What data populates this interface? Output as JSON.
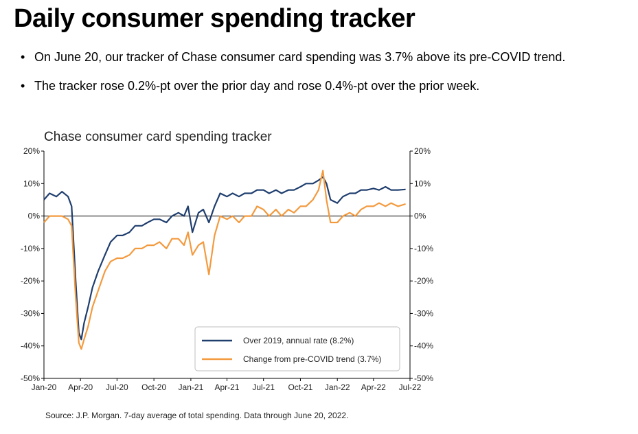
{
  "header": {
    "title": "Daily consumer spending tracker",
    "bullets": [
      "On June 20, our tracker of Chase consumer card spending was 3.7% above its pre-COVID trend.",
      "The tracker rose 0.2%-pt over the prior day and rose 0.4%-pt over the prior week."
    ]
  },
  "footer": {
    "source": "Source: J.P. Morgan. 7-day average of total spending. Data through June 20, 2022."
  },
  "chart_data": {
    "type": "line",
    "title": "Chase consumer card spending tracker",
    "xlabel": "",
    "ylabel": "",
    "x_unit": "date",
    "x_range": [
      "2020-01-01",
      "2022-07-01"
    ],
    "ylim": [
      -50,
      20
    ],
    "y_ticks": [
      20,
      10,
      0,
      -10,
      -20,
      -30,
      -40,
      -50
    ],
    "y_tick_labels": [
      "20%",
      "10%",
      "0%",
      "-10%",
      "-20%",
      "-30%",
      "-40%",
      "-50%"
    ],
    "x_ticks": [
      "2020-01-01",
      "2020-04-01",
      "2020-07-01",
      "2020-10-01",
      "2021-01-01",
      "2021-04-01",
      "2021-07-01",
      "2021-10-01",
      "2022-01-01",
      "2022-04-01",
      "2022-07-01"
    ],
    "x_tick_labels": [
      "Jan-20",
      "Apr-20",
      "Jul-20",
      "Oct-20",
      "Jan-21",
      "Apr-21",
      "Jul-21",
      "Oct-21",
      "Jan-22",
      "Apr-22",
      "Jul-22"
    ],
    "legend_position": "bottom-right",
    "zero_line": true,
    "grid": false,
    "series": [
      {
        "name": "Over 2019, annual rate (8.2%)",
        "color": "#1f3e6e",
        "points": [
          [
            "2020-01-01",
            5
          ],
          [
            "2020-01-15",
            7
          ],
          [
            "2020-02-01",
            6
          ],
          [
            "2020-02-15",
            7.5
          ],
          [
            "2020-03-01",
            6
          ],
          [
            "2020-03-10",
            3
          ],
          [
            "2020-03-20",
            -20
          ],
          [
            "2020-03-28",
            -36
          ],
          [
            "2020-04-03",
            -38
          ],
          [
            "2020-04-10",
            -33
          ],
          [
            "2020-04-20",
            -28
          ],
          [
            "2020-05-01",
            -22
          ],
          [
            "2020-05-15",
            -17
          ],
          [
            "2020-06-01",
            -12
          ],
          [
            "2020-06-15",
            -8
          ],
          [
            "2020-07-01",
            -6
          ],
          [
            "2020-07-15",
            -6
          ],
          [
            "2020-08-01",
            -5
          ],
          [
            "2020-08-15",
            -3
          ],
          [
            "2020-09-01",
            -3
          ],
          [
            "2020-09-15",
            -2
          ],
          [
            "2020-10-01",
            -1
          ],
          [
            "2020-10-15",
            -1
          ],
          [
            "2020-11-01",
            -2
          ],
          [
            "2020-11-15",
            0
          ],
          [
            "2020-12-01",
            1
          ],
          [
            "2020-12-15",
            0
          ],
          [
            "2020-12-25",
            3
          ],
          [
            "2021-01-05",
            -5
          ],
          [
            "2021-01-20",
            1
          ],
          [
            "2021-02-01",
            2
          ],
          [
            "2021-02-15",
            -2
          ],
          [
            "2021-03-01",
            3
          ],
          [
            "2021-03-15",
            7
          ],
          [
            "2021-04-01",
            6
          ],
          [
            "2021-04-15",
            7
          ],
          [
            "2021-05-01",
            6
          ],
          [
            "2021-05-15",
            7
          ],
          [
            "2021-06-01",
            7
          ],
          [
            "2021-06-15",
            8
          ],
          [
            "2021-07-01",
            8
          ],
          [
            "2021-07-15",
            7
          ],
          [
            "2021-08-01",
            8
          ],
          [
            "2021-08-15",
            7
          ],
          [
            "2021-09-01",
            8
          ],
          [
            "2021-09-15",
            8
          ],
          [
            "2021-10-01",
            9
          ],
          [
            "2021-10-15",
            10
          ],
          [
            "2021-11-01",
            10
          ],
          [
            "2021-11-15",
            11
          ],
          [
            "2021-11-26",
            12
          ],
          [
            "2021-12-05",
            10
          ],
          [
            "2021-12-15",
            5
          ],
          [
            "2022-01-01",
            4
          ],
          [
            "2022-01-15",
            6
          ],
          [
            "2022-02-01",
            7
          ],
          [
            "2022-02-15",
            7
          ],
          [
            "2022-03-01",
            8
          ],
          [
            "2022-03-15",
            8
          ],
          [
            "2022-04-01",
            8.5
          ],
          [
            "2022-04-15",
            8
          ],
          [
            "2022-05-01",
            9
          ],
          [
            "2022-05-15",
            8
          ],
          [
            "2022-06-01",
            8
          ],
          [
            "2022-06-20",
            8.2
          ]
        ]
      },
      {
        "name": "Change from pre-COVID trend (3.7%)",
        "color": "#f39a3e",
        "points": [
          [
            "2020-01-01",
            -2
          ],
          [
            "2020-01-15",
            0
          ],
          [
            "2020-02-01",
            0
          ],
          [
            "2020-02-15",
            0
          ],
          [
            "2020-03-01",
            -1
          ],
          [
            "2020-03-10",
            -3
          ],
          [
            "2020-03-20",
            -25
          ],
          [
            "2020-03-28",
            -39
          ],
          [
            "2020-04-03",
            -41
          ],
          [
            "2020-04-10",
            -38
          ],
          [
            "2020-04-20",
            -34
          ],
          [
            "2020-05-01",
            -28
          ],
          [
            "2020-05-15",
            -23
          ],
          [
            "2020-06-01",
            -17
          ],
          [
            "2020-06-15",
            -14
          ],
          [
            "2020-07-01",
            -13
          ],
          [
            "2020-07-15",
            -13
          ],
          [
            "2020-08-01",
            -12
          ],
          [
            "2020-08-15",
            -10
          ],
          [
            "2020-09-01",
            -10
          ],
          [
            "2020-09-15",
            -9
          ],
          [
            "2020-10-01",
            -9
          ],
          [
            "2020-10-15",
            -8
          ],
          [
            "2020-11-01",
            -10
          ],
          [
            "2020-11-15",
            -7
          ],
          [
            "2020-12-01",
            -7
          ],
          [
            "2020-12-15",
            -9
          ],
          [
            "2020-12-25",
            -5
          ],
          [
            "2021-01-05",
            -12
          ],
          [
            "2021-01-20",
            -9
          ],
          [
            "2021-02-01",
            -8
          ],
          [
            "2021-02-15",
            -18
          ],
          [
            "2021-03-01",
            -6
          ],
          [
            "2021-03-15",
            0
          ],
          [
            "2021-04-01",
            -1
          ],
          [
            "2021-04-15",
            0
          ],
          [
            "2021-05-01",
            -2
          ],
          [
            "2021-05-15",
            0
          ],
          [
            "2021-06-01",
            0
          ],
          [
            "2021-06-15",
            3
          ],
          [
            "2021-07-01",
            2
          ],
          [
            "2021-07-15",
            0
          ],
          [
            "2021-08-01",
            2
          ],
          [
            "2021-08-15",
            0
          ],
          [
            "2021-09-01",
            2
          ],
          [
            "2021-09-15",
            1
          ],
          [
            "2021-10-01",
            3
          ],
          [
            "2021-10-15",
            3
          ],
          [
            "2021-11-01",
            5
          ],
          [
            "2021-11-15",
            8
          ],
          [
            "2021-11-26",
            14
          ],
          [
            "2021-12-05",
            5
          ],
          [
            "2021-12-15",
            -2
          ],
          [
            "2022-01-01",
            -2
          ],
          [
            "2022-01-15",
            0
          ],
          [
            "2022-02-01",
            1
          ],
          [
            "2022-02-15",
            0
          ],
          [
            "2022-03-01",
            2
          ],
          [
            "2022-03-15",
            3
          ],
          [
            "2022-04-01",
            3
          ],
          [
            "2022-04-15",
            4
          ],
          [
            "2022-05-01",
            3
          ],
          [
            "2022-05-15",
            4
          ],
          [
            "2022-06-01",
            3
          ],
          [
            "2022-06-20",
            3.7
          ]
        ]
      }
    ]
  }
}
